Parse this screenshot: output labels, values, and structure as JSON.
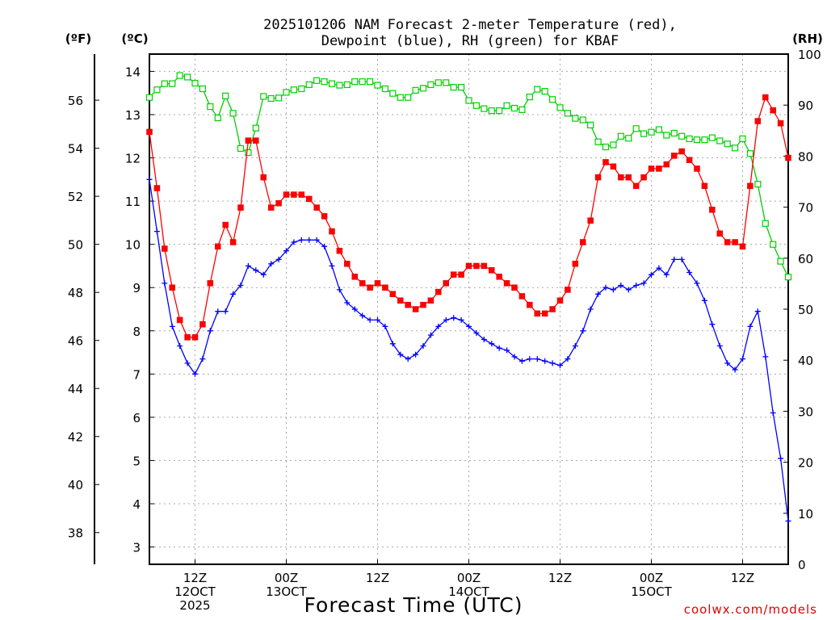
{
  "chart_data": {
    "type": "line",
    "title": "2025101206 NAM Forecast 2-meter Temperature (red), Dewpoint (blue), RH (green) for KBAF",
    "title_lines": [
      "2025101206 NAM Forecast 2-meter Temperature (red),",
      "Dewpoint (blue), RH (green) for KBAF"
    ],
    "xlabel": "Forecast Time (UTC)",
    "credit": "coolwx.com/models",
    "units": {
      "fahrenheit": "(ºF)",
      "celsius": "(ºC)",
      "rh": "(RH)"
    },
    "x_hours_range": [
      0,
      84
    ],
    "x_ticks": [
      {
        "hour": 6,
        "lines": [
          "12Z",
          "12OCT",
          "2025"
        ]
      },
      {
        "hour": 18,
        "lines": [
          "00Z",
          "13OCT"
        ]
      },
      {
        "hour": 30,
        "lines": [
          "12Z"
        ]
      },
      {
        "hour": 42,
        "lines": [
          "00Z",
          "14OCT"
        ]
      },
      {
        "hour": 54,
        "lines": [
          "12Z"
        ]
      },
      {
        "hour": 66,
        "lines": [
          "00Z",
          "15OCT"
        ]
      },
      {
        "hour": 78,
        "lines": [
          "12Z"
        ]
      }
    ],
    "y_celsius": {
      "range": [
        2.6,
        14.4
      ],
      "ticks": [
        3,
        4,
        5,
        6,
        7,
        8,
        9,
        10,
        11,
        12,
        13,
        14
      ]
    },
    "y_fahrenheit": {
      "ticks": [
        38,
        40,
        42,
        44,
        46,
        48,
        50,
        52,
        54,
        56
      ]
    },
    "y_rh": {
      "range": [
        0,
        100
      ],
      "ticks": [
        0,
        10,
        20,
        30,
        40,
        50,
        60,
        70,
        80,
        90,
        100
      ]
    },
    "colors": {
      "temperature": "#ff0000",
      "dewpoint": "#0000ff",
      "rh": "#00d000"
    },
    "series": [
      {
        "name": "Temperature",
        "unit": "C",
        "marker": "filled-square",
        "values": [
          12.6,
          11.3,
          9.9,
          9.0,
          8.25,
          7.85,
          7.85,
          8.15,
          9.1,
          9.95,
          10.45,
          10.05,
          10.85,
          12.4,
          12.4,
          11.55,
          10.85,
          10.95,
          11.15,
          11.15,
          11.15,
          11.05,
          10.85,
          10.65,
          10.3,
          9.85,
          9.55,
          9.25,
          9.1,
          9.0,
          9.1,
          9.0,
          8.85,
          8.7,
          8.6,
          8.5,
          8.6,
          8.7,
          8.9,
          9.1,
          9.3,
          9.3,
          9.5,
          9.5,
          9.5,
          9.4,
          9.25,
          9.1,
          9.0,
          8.8,
          8.6,
          8.4,
          8.4,
          8.5,
          8.7,
          8.95,
          9.55,
          10.05,
          10.55,
          11.55,
          11.9,
          11.8,
          11.55,
          11.55,
          11.35,
          11.55,
          11.75,
          11.75,
          11.85,
          12.05,
          12.15,
          11.95,
          11.75,
          11.35,
          10.8,
          10.25,
          10.05,
          10.05,
          9.95,
          11.35,
          12.85,
          13.4,
          13.1,
          12.8,
          12.0
        ]
      },
      {
        "name": "Dewpoint",
        "unit": "C",
        "marker": "plus",
        "values": [
          11.5,
          10.3,
          9.1,
          8.1,
          7.65,
          7.25,
          7.0,
          7.35,
          8.0,
          8.45,
          8.45,
          8.85,
          9.05,
          9.5,
          9.4,
          9.3,
          9.55,
          9.65,
          9.85,
          10.05,
          10.1,
          10.1,
          10.1,
          9.95,
          9.5,
          8.95,
          8.65,
          8.5,
          8.35,
          8.25,
          8.25,
          8.1,
          7.7,
          7.45,
          7.35,
          7.45,
          7.65,
          7.9,
          8.1,
          8.25,
          8.3,
          8.25,
          8.1,
          7.95,
          7.8,
          7.7,
          7.6,
          7.55,
          7.4,
          7.3,
          7.35,
          7.35,
          7.3,
          7.25,
          7.2,
          7.35,
          7.65,
          8.0,
          8.5,
          8.85,
          9.0,
          8.95,
          9.05,
          8.95,
          9.05,
          9.1,
          9.3,
          9.45,
          9.3,
          9.65,
          9.65,
          9.35,
          9.1,
          8.7,
          8.15,
          7.65,
          7.25,
          7.1,
          7.35,
          8.1,
          8.45,
          7.4,
          6.1,
          5.05,
          3.6
        ]
      },
      {
        "name": "RH",
        "unit": "%",
        "marker": "open-square",
        "values": [
          91.5,
          93,
          94.2,
          94.2,
          95.8,
          95.5,
          94.3,
          93.2,
          89.7,
          87.5,
          91.8,
          88.4,
          81.5,
          80.7,
          85.5,
          91.7,
          91.3,
          91.4,
          92.5,
          93,
          93.2,
          94,
          94.8,
          94.6,
          94.2,
          93.9,
          94,
          94.6,
          94.6,
          94.6,
          93.9,
          93.2,
          92.3,
          91.5,
          91.5,
          92.9,
          93.3,
          94,
          94.4,
          94.4,
          93.5,
          93.5,
          90.9,
          89.9,
          89.3,
          88.9,
          88.9,
          89.9,
          89.4,
          89.1,
          91.6,
          93.1,
          92.7,
          91.1,
          89.5,
          88.4,
          87.4,
          87.1,
          86.1,
          82.8,
          81.8,
          82.2,
          83.9,
          83.5,
          85.4,
          84.4,
          84.7,
          85.2,
          84.1,
          84.5,
          83.9,
          83.4,
          83.2,
          83.2,
          83.6,
          83,
          82.4,
          81.6,
          83.4,
          80.5,
          74.5,
          66.8,
          62.7,
          59.4,
          56.3
        ]
      }
    ],
    "grid": true,
    "legend": "none (series named in title)"
  }
}
